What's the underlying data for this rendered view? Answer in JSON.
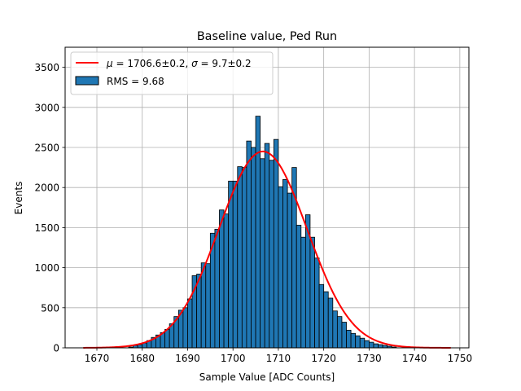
{
  "chart_data": {
    "type": "bar",
    "title": "Baseline value, Ped Run",
    "xlabel": "Sample Value [ADC Counts]",
    "ylabel": "Events",
    "xlim": [
      1663,
      1752
    ],
    "ylim": [
      0,
      3750
    ],
    "x_ticks": [
      1670,
      1680,
      1690,
      1700,
      1710,
      1720,
      1730,
      1740,
      1750
    ],
    "y_ticks": [
      0,
      500,
      1000,
      1500,
      2000,
      2500,
      3000,
      3500
    ],
    "grid": true,
    "legend": {
      "placement": "top-left",
      "fit_label_mu": "μ",
      "fit_label_mid": " = 1706.6±0.2, ",
      "fit_label_sigma": "σ",
      "fit_label_end": " = 9.7±0.2",
      "hist_label": "RMS = 9.68"
    },
    "histogram": {
      "name": "RMS = 9.68",
      "bin_width": 1,
      "bin_edges_start": 1677,
      "values": [
        10,
        30,
        40,
        60,
        90,
        130,
        160,
        190,
        230,
        300,
        390,
        470,
        500,
        610,
        900,
        920,
        1060,
        1050,
        1430,
        1480,
        1720,
        1670,
        2080,
        2080,
        2260,
        2250,
        2580,
        2500,
        2890,
        2360,
        2550,
        2340,
        2600,
        2010,
        2100,
        1930,
        2250,
        1530,
        1380,
        1660,
        1380,
        1120,
        790,
        700,
        620,
        460,
        390,
        320,
        220,
        180,
        150,
        120,
        90,
        70,
        50,
        40,
        30,
        20,
        10
      ],
      "color": "#1f77b4",
      "edgecolor": "#000000"
    },
    "fit": {
      "type": "gaussian",
      "mu": 1706.6,
      "sigma": 9.7,
      "amplitude": 2450,
      "x_range": [
        1667,
        1748
      ],
      "color": "#ff0000"
    }
  }
}
